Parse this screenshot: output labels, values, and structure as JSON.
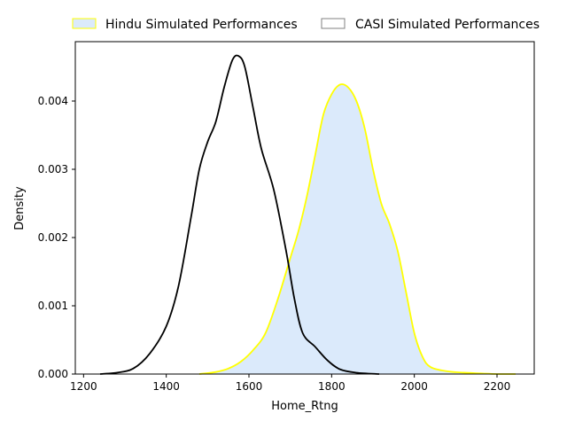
{
  "chart_data": {
    "type": "area",
    "title": "",
    "xlabel": "Home_Rtng",
    "ylabel": "Density",
    "xlim": [
      1180,
      2290
    ],
    "ylim": [
      0,
      0.00487
    ],
    "xticks": [
      1200,
      1400,
      1600,
      1800,
      2000,
      2200
    ],
    "yticks": [
      0.0,
      0.001,
      0.002,
      0.003,
      0.004
    ],
    "ytick_labels": [
      "0.000",
      "0.001",
      "0.002",
      "0.003",
      "0.004"
    ],
    "grid": false,
    "legend_position": "top",
    "series": [
      {
        "name": "Hindu Simulated Performances",
        "fill": "#dbeafb",
        "line": "#ffff00",
        "filled": true,
        "x": [
          1480,
          1520,
          1550,
          1580,
          1610,
          1640,
          1670,
          1700,
          1720,
          1740,
          1760,
          1780,
          1800,
          1820,
          1840,
          1860,
          1880,
          1900,
          1920,
          1940,
          1960,
          1980,
          2000,
          2020,
          2040,
          2080,
          2120,
          2160,
          2200,
          2245
        ],
        "y": [
          0.0,
          3e-05,
          8e-05,
          0.00018,
          0.00035,
          0.0006,
          0.0011,
          0.0017,
          0.0021,
          0.0026,
          0.0032,
          0.0038,
          0.0041,
          0.00424,
          0.0042,
          0.004,
          0.0036,
          0.003,
          0.0025,
          0.0022,
          0.0018,
          0.0012,
          0.0006,
          0.00025,
          0.0001,
          4e-05,
          2e-05,
          1e-05,
          0.0,
          0.0
        ]
      },
      {
        "name": "CASI Simulated Performances",
        "fill": "none",
        "line": "#000000",
        "filled": false,
        "x": [
          1240,
          1280,
          1320,
          1360,
          1400,
          1430,
          1460,
          1480,
          1500,
          1520,
          1540,
          1560,
          1575,
          1590,
          1610,
          1630,
          1660,
          1690,
          1710,
          1730,
          1760,
          1790,
          1820,
          1860,
          1915
        ],
        "y": [
          0.0,
          2e-05,
          8e-05,
          0.0003,
          0.0007,
          0.0013,
          0.0023,
          0.003,
          0.0034,
          0.0037,
          0.0042,
          0.0046,
          0.00466,
          0.0045,
          0.0039,
          0.0033,
          0.0027,
          0.0018,
          0.0011,
          0.0006,
          0.0004,
          0.0002,
          7e-05,
          2e-05,
          0.0
        ]
      }
    ]
  }
}
